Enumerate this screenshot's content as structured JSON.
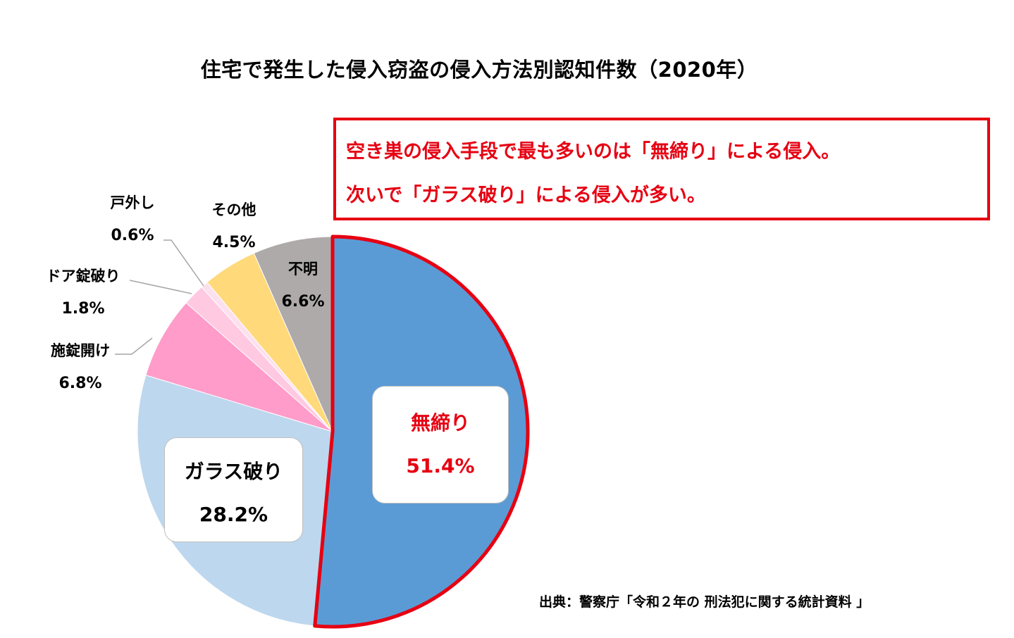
{
  "title": "住宅で発生した侵入窃盗の侵入方法別認知件数（2020年）",
  "callout": {
    "line1": "空き巣の侵入手段で最も多いのは「無締り」による侵入。",
    "line2": "次いで「ガラス破り」による侵入が多い。"
  },
  "source": "出典：警察庁「令和２年の 刑法犯に関する統計資料 」",
  "chart_data": {
    "type": "pie",
    "start_angle": "12 o'clock",
    "direction": "clockwise",
    "slices": [
      {
        "label": "無締り",
        "value": 51.4,
        "pct_text": "51.4%",
        "color": "#5b9bd5",
        "highlight": true,
        "label_color": "#e60012"
      },
      {
        "label": "ガラス破り",
        "value": 28.2,
        "pct_text": "28.2%",
        "color": "#bdd7ee"
      },
      {
        "label": "施錠開け",
        "value": 6.8,
        "pct_text": "6.8%",
        "color": "#ff9cca"
      },
      {
        "label": "ドア錠破り",
        "value": 1.8,
        "pct_text": "1.8%",
        "color": "#ffc9e2"
      },
      {
        "label": "戸外し",
        "value": 0.6,
        "pct_text": "0.6%",
        "color": "#fde0ee"
      },
      {
        "label": "その他",
        "value": 4.5,
        "pct_text": "4.5%",
        "color": "#ffd97a"
      },
      {
        "label": "不明",
        "value": 6.6,
        "pct_text": "6.6%",
        "color": "#aeaaaa"
      }
    ],
    "highlight_color": "#e60012"
  }
}
